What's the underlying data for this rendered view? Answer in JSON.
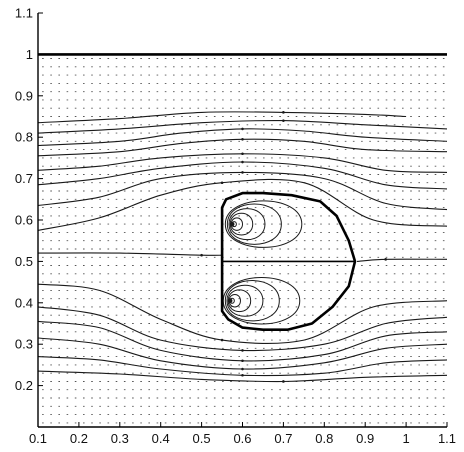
{
  "chart_data": {
    "type": "streamline",
    "title": "",
    "xlabel": "",
    "ylabel": "",
    "xlim": [
      0.1,
      1.1
    ],
    "ylim": [
      0.1,
      1.1
    ],
    "x_ticks": [
      "0.1",
      "0.2",
      "0.3",
      "0.4",
      "0.5",
      "0.6",
      "0.7",
      "0.8",
      "0.9",
      "1",
      "1.1"
    ],
    "y_ticks": [
      "0.2",
      "0.3",
      "0.4",
      "0.5",
      "0.6",
      "0.7",
      "0.8",
      "0.9",
      "1",
      "1.1"
    ],
    "grid": "dotted vector field",
    "top_wall_y": 1.0,
    "body_outline": [
      [
        0.55,
        0.63
      ],
      [
        0.56,
        0.65
      ],
      [
        0.6,
        0.665
      ],
      [
        0.65,
        0.665
      ],
      [
        0.72,
        0.66
      ],
      [
        0.79,
        0.645
      ],
      [
        0.83,
        0.61
      ],
      [
        0.86,
        0.55
      ],
      [
        0.875,
        0.5
      ],
      [
        0.86,
        0.44
      ],
      [
        0.82,
        0.39
      ],
      [
        0.77,
        0.35
      ],
      [
        0.71,
        0.335
      ],
      [
        0.65,
        0.335
      ],
      [
        0.6,
        0.34
      ],
      [
        0.565,
        0.36
      ],
      [
        0.55,
        0.38
      ],
      [
        0.55,
        0.5
      ],
      [
        0.55,
        0.63
      ]
    ],
    "vortex_centers": [
      [
        0.575,
        0.59
      ],
      [
        0.57,
        0.405
      ]
    ],
    "streamlines": [
      {
        "name": "",
        "points": [
          [
            0.1,
            0.835
          ],
          [
            0.3,
            0.845
          ],
          [
            0.5,
            0.86
          ],
          [
            0.7,
            0.86
          ],
          [
            0.9,
            0.855
          ],
          [
            1.0,
            0.85
          ]
        ]
      },
      {
        "name": "",
        "points": [
          [
            0.1,
            0.81
          ],
          [
            0.3,
            0.82
          ],
          [
            0.5,
            0.835
          ],
          [
            0.7,
            0.84
          ],
          [
            0.9,
            0.83
          ],
          [
            1.1,
            0.82
          ]
        ]
      },
      {
        "name": "",
        "points": [
          [
            0.1,
            0.78
          ],
          [
            0.3,
            0.79
          ],
          [
            0.45,
            0.81
          ],
          [
            0.6,
            0.82
          ],
          [
            0.75,
            0.815
          ],
          [
            0.9,
            0.8
          ],
          [
            1.1,
            0.79
          ]
        ]
      },
      {
        "name": "",
        "points": [
          [
            0.1,
            0.755
          ],
          [
            0.3,
            0.765
          ],
          [
            0.45,
            0.785
          ],
          [
            0.6,
            0.795
          ],
          [
            0.75,
            0.79
          ],
          [
            0.9,
            0.77
          ],
          [
            1.1,
            0.765
          ]
        ]
      },
      {
        "name": "",
        "points": [
          [
            0.1,
            0.72
          ],
          [
            0.25,
            0.73
          ],
          [
            0.4,
            0.75
          ],
          [
            0.6,
            0.76
          ],
          [
            0.8,
            0.75
          ],
          [
            0.95,
            0.72
          ],
          [
            1.1,
            0.715
          ]
        ]
      },
      {
        "name": "",
        "points": [
          [
            0.1,
            0.685
          ],
          [
            0.25,
            0.7
          ],
          [
            0.4,
            0.725
          ],
          [
            0.6,
            0.74
          ],
          [
            0.8,
            0.725
          ],
          [
            0.95,
            0.685
          ],
          [
            1.1,
            0.675
          ]
        ]
      },
      {
        "name": "",
        "points": [
          [
            0.1,
            0.635
          ],
          [
            0.25,
            0.655
          ],
          [
            0.4,
            0.7
          ],
          [
            0.6,
            0.715
          ],
          [
            0.8,
            0.7
          ],
          [
            0.95,
            0.64
          ],
          [
            1.1,
            0.625
          ]
        ]
      },
      {
        "name": "",
        "points": [
          [
            0.1,
            0.575
          ],
          [
            0.25,
            0.605
          ],
          [
            0.4,
            0.66
          ],
          [
            0.55,
            0.69
          ],
          [
            0.75,
            0.69
          ],
          [
            0.92,
            0.6
          ],
          [
            1.1,
            0.585
          ]
        ]
      },
      {
        "name": "",
        "points": [
          [
            0.1,
            0.445
          ],
          [
            0.25,
            0.43
          ],
          [
            0.4,
            0.36
          ],
          [
            0.55,
            0.31
          ],
          [
            0.75,
            0.31
          ],
          [
            0.92,
            0.39
          ],
          [
            1.1,
            0.405
          ]
        ]
      },
      {
        "name": "",
        "points": [
          [
            0.1,
            0.39
          ],
          [
            0.25,
            0.37
          ],
          [
            0.4,
            0.31
          ],
          [
            0.6,
            0.285
          ],
          [
            0.8,
            0.3
          ],
          [
            0.95,
            0.35
          ],
          [
            1.1,
            0.365
          ]
        ]
      },
      {
        "name": "",
        "points": [
          [
            0.1,
            0.355
          ],
          [
            0.25,
            0.34
          ],
          [
            0.4,
            0.285
          ],
          [
            0.6,
            0.26
          ],
          [
            0.8,
            0.275
          ],
          [
            0.95,
            0.32
          ],
          [
            1.1,
            0.33
          ]
        ]
      },
      {
        "name": "",
        "points": [
          [
            0.1,
            0.315
          ],
          [
            0.25,
            0.3
          ],
          [
            0.4,
            0.26
          ],
          [
            0.6,
            0.24
          ],
          [
            0.8,
            0.255
          ],
          [
            0.95,
            0.29
          ],
          [
            1.1,
            0.3
          ]
        ]
      },
      {
        "name": "",
        "points": [
          [
            0.1,
            0.27
          ],
          [
            0.25,
            0.262
          ],
          [
            0.4,
            0.24
          ],
          [
            0.6,
            0.225
          ],
          [
            0.8,
            0.23
          ],
          [
            0.95,
            0.255
          ],
          [
            1.1,
            0.262
          ]
        ]
      },
      {
        "name": "",
        "points": [
          [
            0.1,
            0.235
          ],
          [
            0.3,
            0.228
          ],
          [
            0.5,
            0.215
          ],
          [
            0.7,
            0.21
          ],
          [
            0.9,
            0.22
          ],
          [
            1.1,
            0.225
          ]
        ]
      },
      {
        "name": "",
        "points": [
          [
            0.1,
            0.52
          ],
          [
            0.3,
            0.52
          ],
          [
            0.5,
            0.515
          ],
          [
            0.55,
            0.515
          ]
        ]
      },
      {
        "name": "",
        "points": [
          [
            0.88,
            0.5
          ],
          [
            0.95,
            0.505
          ],
          [
            1.1,
            0.505
          ]
        ]
      }
    ],
    "inner_loops": [
      {
        "center": [
          0.575,
          0.59
        ],
        "rx": [
          0.01,
          0.025,
          0.05,
          0.08,
          0.12,
          0.17
        ],
        "ry": [
          0.008,
          0.02,
          0.035,
          0.05,
          0.065,
          0.075
        ]
      },
      {
        "center": [
          0.57,
          0.405
        ],
        "rx": [
          0.01,
          0.025,
          0.05,
          0.08,
          0.12,
          0.17
        ],
        "ry": [
          0.008,
          0.02,
          0.035,
          0.05,
          0.065,
          0.075
        ]
      }
    ],
    "axis_color": "#000000",
    "line_color": "#1a1a1a",
    "grid_color": "#555555"
  }
}
